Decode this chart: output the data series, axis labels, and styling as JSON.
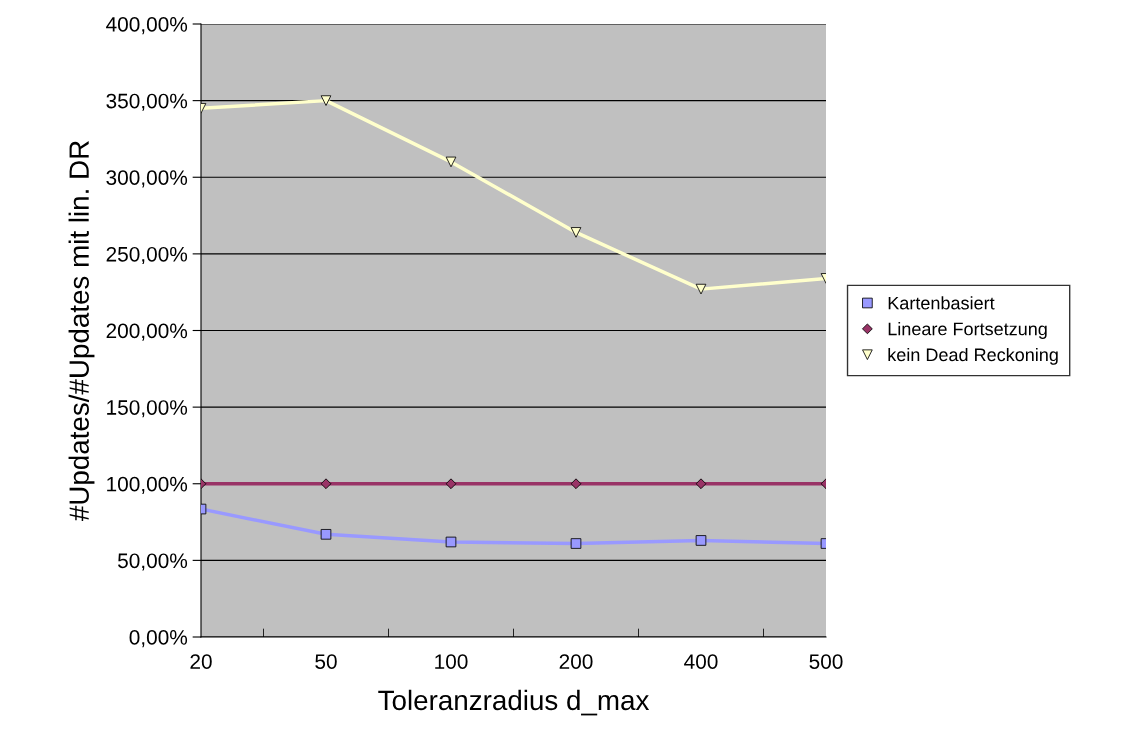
{
  "chart_data": {
    "type": "line",
    "xlabel": "Toleranzradius d_max",
    "ylabel": "#Updates/#Updates mit lin. DR",
    "categories": [
      "20",
      "50",
      "100",
      "200",
      "400",
      "500"
    ],
    "series": [
      {
        "name": "Kartenbasiert",
        "color": "#9999ff",
        "marker": "square",
        "values": [
          83.5,
          67,
          62,
          61,
          63,
          61
        ]
      },
      {
        "name": "Lineare Fortsetzung",
        "color": "#993366",
        "marker": "diamond",
        "values": [
          100,
          100,
          100,
          100,
          100,
          100
        ]
      },
      {
        "name": "kein Dead Reckoning",
        "color": "#ffffcc",
        "marker": "triangle_down",
        "values": [
          345,
          350,
          310,
          264,
          227,
          234
        ]
      }
    ],
    "ylim": [
      0,
      400
    ],
    "yticks": [
      {
        "value": 0,
        "label": "0,00%"
      },
      {
        "value": 50,
        "label": "50,00%"
      },
      {
        "value": 100,
        "label": "100,00%"
      },
      {
        "value": 150,
        "label": "150,00%"
      },
      {
        "value": 200,
        "label": "200,00%"
      },
      {
        "value": 250,
        "label": "250,00%"
      },
      {
        "value": 300,
        "label": "300,00%"
      },
      {
        "value": 350,
        "label": "350,00%"
      },
      {
        "value": 400,
        "label": "400,00%"
      }
    ],
    "grid": "y",
    "legend": "right"
  }
}
